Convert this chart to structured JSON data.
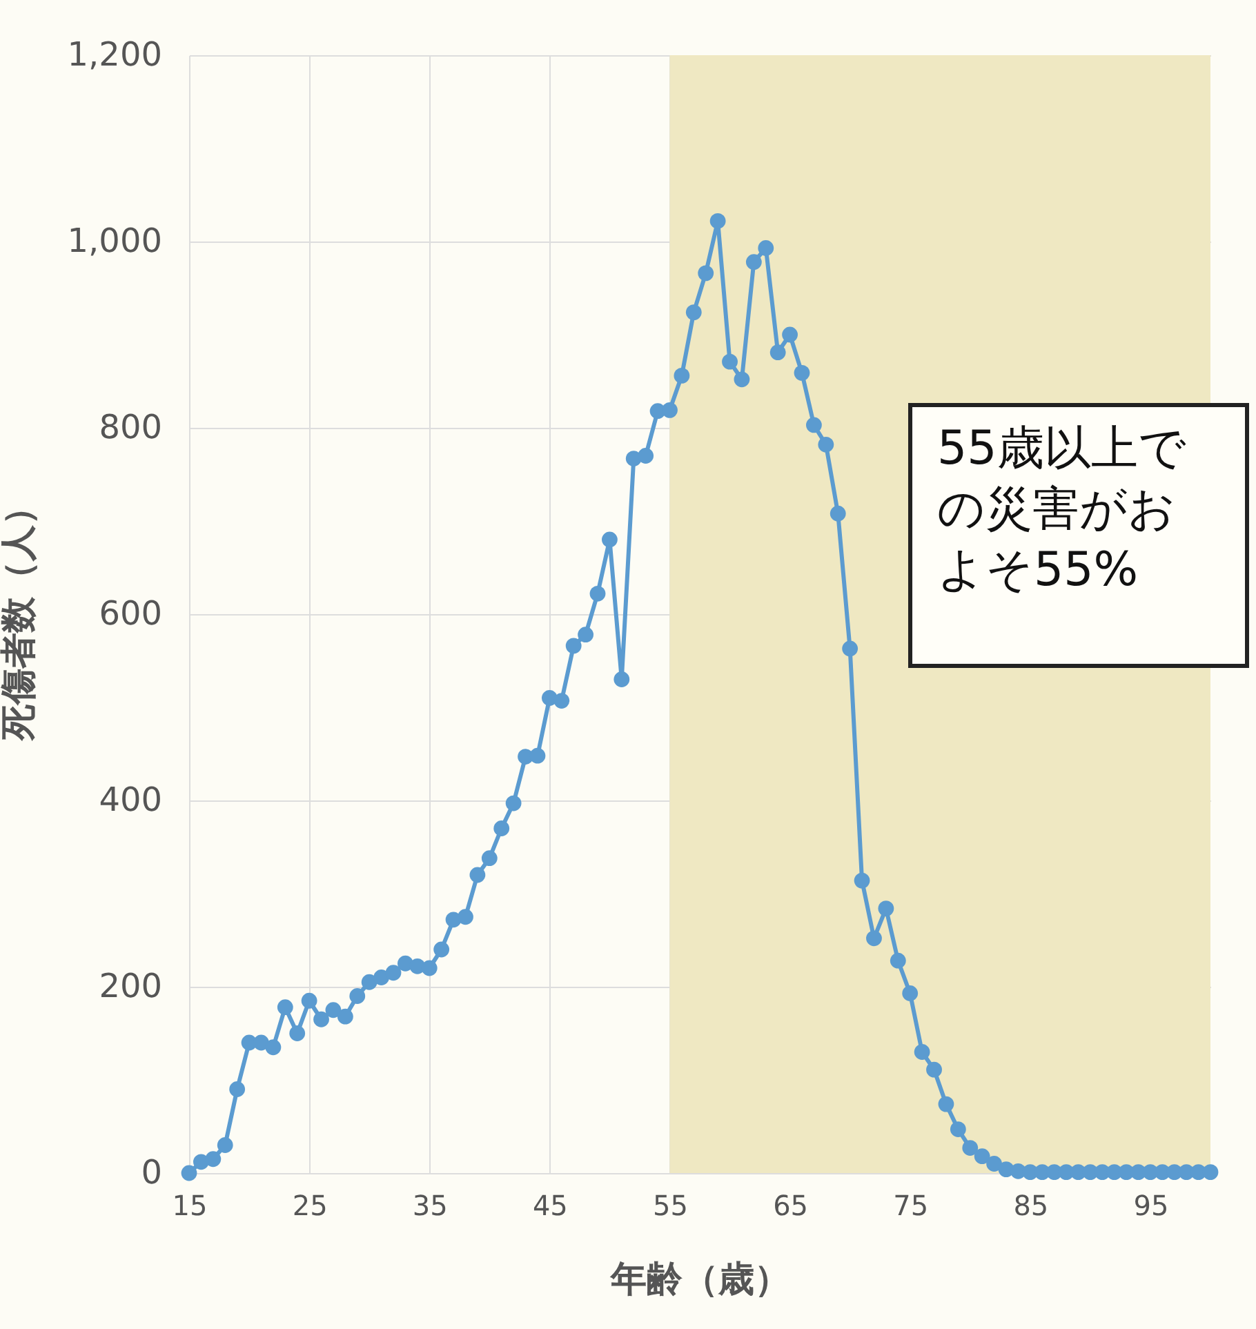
{
  "chart_data": {
    "type": "line",
    "xlabel": "年齢（歳）",
    "ylabel": "死傷者数（人）",
    "x": [
      15,
      16,
      17,
      18,
      19,
      20,
      21,
      22,
      23,
      24,
      25,
      26,
      27,
      28,
      29,
      30,
      31,
      32,
      33,
      34,
      35,
      36,
      37,
      38,
      39,
      40,
      41,
      42,
      43,
      44,
      45,
      46,
      47,
      48,
      49,
      50,
      51,
      52,
      53,
      54,
      55,
      56,
      57,
      58,
      59,
      60,
      61,
      62,
      63,
      64,
      65,
      66,
      67,
      68,
      69,
      70,
      71,
      72,
      73,
      74,
      75,
      76,
      77,
      78,
      79,
      80,
      81,
      82,
      83,
      84,
      85,
      86,
      87,
      88,
      89,
      90,
      91,
      92,
      93,
      94,
      95,
      96,
      97,
      98,
      99,
      100
    ],
    "series": [
      {
        "color": "#5b9bd0",
        "values": [
          0,
          12,
          15,
          30,
          90,
          140,
          140,
          135,
          178,
          150,
          185,
          165,
          175,
          168,
          190,
          205,
          210,
          215,
          225,
          222,
          220,
          240,
          272,
          275,
          320,
          338,
          370,
          397,
          447,
          448,
          510,
          507,
          566,
          578,
          622,
          680,
          530,
          767,
          770,
          818,
          819,
          856,
          924,
          966,
          1022,
          871,
          852,
          978,
          993,
          881,
          900,
          859,
          803,
          782,
          708,
          563,
          314,
          252,
          284,
          228,
          193,
          130,
          111,
          74,
          47,
          27,
          18,
          10,
          4,
          2,
          1,
          1,
          1,
          1,
          1,
          1,
          1,
          1,
          1,
          1,
          1,
          1,
          1,
          1,
          1,
          1
        ]
      }
    ],
    "xlim": [
      15,
      100
    ],
    "xticks": [
      15,
      25,
      35,
      45,
      55,
      65,
      75,
      85,
      95
    ],
    "ylim": [
      0,
      1200
    ],
    "yticks": [
      0,
      200,
      400,
      600,
      800,
      {
        "value": 1000,
        "label": "1,000"
      },
      {
        "value": 1200,
        "label": "1,200"
      }
    ],
    "bands": [
      {
        "axis": "x",
        "from": 55,
        "to": 100,
        "color": "#efe8c2"
      }
    ],
    "annotations": [
      "55歳以上での災害がおよそ55%"
    ],
    "grid": true,
    "marker": "circle",
    "line_style": "solid"
  }
}
